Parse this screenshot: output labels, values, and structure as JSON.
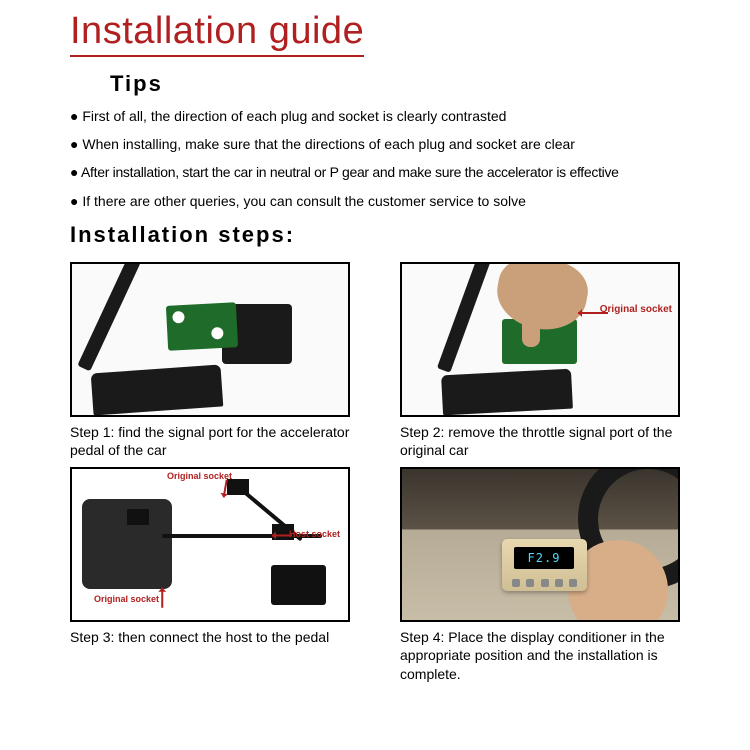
{
  "title": "Installation guide",
  "tips_heading": "Tips",
  "tips": [
    "First of all, the direction of each plug and socket is clearly contrasted",
    "When installing, make sure that the directions of each plug and socket are clear",
    "After installation, start the car in neutral or P gear and make sure the accelerator is effective",
    "If there are other queries, you can consult the customer service to solve"
  ],
  "steps_heading": "Installation steps:",
  "steps": [
    {
      "caption": "Step 1: find the signal port for the accelerator pedal of the car"
    },
    {
      "caption": "Step 2: remove the throttle signal port of the original car"
    },
    {
      "caption": "Step 3: then connect the host to the pedal"
    },
    {
      "caption": "Step 4: Place the display conditioner in the appropriate position and the installation is complete."
    }
  ],
  "labels": {
    "original_socket": "Original socket",
    "host_socket": "Host socket",
    "device_display": "F2.9"
  },
  "colors": {
    "title_red": "#b02020",
    "label_red": "#b02020",
    "pcb_green": "#1f6b2a",
    "screen_text": "#4fd8ff"
  },
  "bullet": "●"
}
